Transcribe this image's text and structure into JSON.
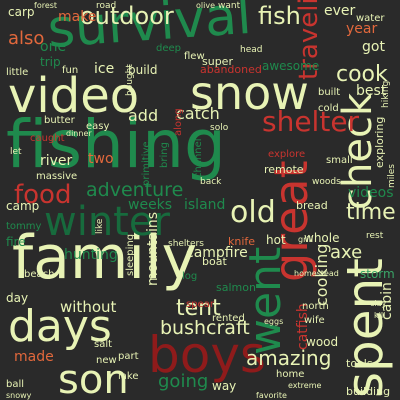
{
  "words": {
    "survival": "survival",
    "fishing": "fishing",
    "video": "video",
    "snow": "snow",
    "family": "family",
    "days": "days",
    "boys": "boys",
    "son": "son",
    "winter": "winter",
    "great": "great",
    "went": "went",
    "spent": "spent",
    "outdoor": "outdoor",
    "fish": "fish",
    "food": "food",
    "old": "old",
    "shelter": "shelter",
    "check": "check",
    "cook": "cook",
    "time": "time",
    "adventure": "adventure",
    "cooking": "cooking",
    "tent": "tent",
    "bushcraft": "bushcraft",
    "going": "going",
    "amazing": "amazing",
    "made": "made",
    "also": "also",
    "make": "make",
    "carp": "carp",
    "one": "one",
    "trip": "trip",
    "ice": "ice",
    "add": "add",
    "catch": "catch",
    "river": "river",
    "two": "two",
    "weeks": "weeks",
    "island": "island",
    "camp": "camp",
    "hunting": "hunting",
    "campfire": "campfire",
    "fire": "fire",
    "without": "without",
    "axe": "axe",
    "whole": "whole",
    "catfish": "catfish",
    "mountains": "mountains",
    "videos": "videos",
    "cabin": "cabin",
    "year": "year",
    "got": "got",
    "best": "best",
    "build": "build",
    "abandoned": "abandoned",
    "awesome": "awesome",
    "butter": "butter",
    "exploring": "exploring",
    "remote": "remote",
    "tommy": "tommy",
    "beach": "beach",
    "day": "day",
    "new": "new",
    "lake": "lake",
    "way": "way",
    "wood": "wood",
    "storm": "storm",
    "hot": "hot",
    "boat": "boat",
    "bread": "bread",
    "knife": "knife",
    "sleeping": "sleeping",
    "salmon": "salmon",
    "north": "north",
    "wife": "wife",
    "road": "road",
    "ever": "ever",
    "water": "water",
    "super": "super",
    "deep": "deep",
    "flew": "flew",
    "fun": "fun",
    "little": "little",
    "easy": "easy",
    "small": "small",
    "channel": "channel",
    "explore": "explore",
    "primitive": "primitive",
    "along": "along",
    "caught": "caught",
    "massive": "massive",
    "bring": "bring",
    "log": "log",
    "spear": "spear",
    "rented": "rented",
    "home": "home",
    "building": "building",
    "tools": "tools",
    "ball": "ball",
    "snowy": "snowy",
    "favorite": "favorite",
    "cold": "cold",
    "built": "built",
    "head": "head",
    "want": "want",
    "olive": "olive",
    "traveling": "traveling",
    "extreme": "extreme",
    "bought": "bought",
    "solo": "solo",
    "like": "like",
    "miles": "miles",
    "back": "back",
    "woods": "woods",
    "shelters": "shelters",
    "homestead": "homestead",
    "part": "part",
    "salt": "salt",
    "eggs": "eggs",
    "hiking": "hiking",
    "forest": "forest",
    "rest": "rest",
    "clay": "clay",
    "kill": "kill",
    "let": "let",
    "dinner": "dinner",
    "grill": "grill",
    "tiny": "tiny"
  }
}
